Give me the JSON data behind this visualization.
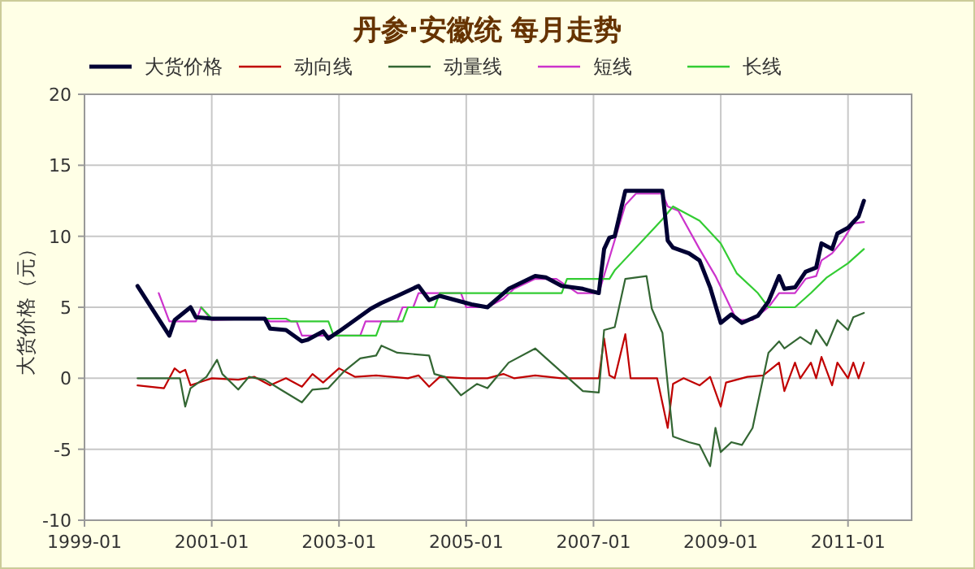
{
  "chart_data": {
    "type": "line",
    "title": "丹参·安徽统 每月走势",
    "ylabel": "大货价格（元）",
    "legend": "top",
    "grid": true,
    "xlim": [
      "1999-01",
      "2012-01"
    ],
    "xticks": [
      "1999-01",
      "2001-01",
      "2003-01",
      "2005-01",
      "2007-01",
      "2009-01",
      "2011-01"
    ],
    "ylim": [
      -10,
      20
    ],
    "yticks": [
      -10,
      -5,
      0,
      5,
      10,
      15,
      20
    ],
    "series": [
      {
        "name": "大货价格",
        "color": "#000033",
        "x": [
          "1999-11",
          "2000-05",
          "2000-06",
          "2000-09",
          "2000-10",
          "2001-01",
          "2001-11",
          "2001-12",
          "2002-03",
          "2002-06",
          "2002-07",
          "2002-10",
          "2002-11",
          "2003-01",
          "2003-07",
          "2003-09",
          "2003-12",
          "2004-04",
          "2004-06",
          "2004-08",
          "2005-02",
          "2005-05",
          "2005-09",
          "2006-02",
          "2006-04",
          "2006-07",
          "2006-11",
          "2007-02",
          "2007-03",
          "2007-04",
          "2007-05",
          "2007-07",
          "2008-02",
          "2008-03",
          "2008-04",
          "2008-07",
          "2008-09",
          "2008-11",
          "2009-01",
          "2009-03",
          "2009-05",
          "2009-08",
          "2009-10",
          "2009-12",
          "2010-01",
          "2010-03",
          "2010-05",
          "2010-07",
          "2010-08",
          "2010-10",
          "2010-11",
          "2011-01",
          "2011-03",
          "2011-04"
        ],
        "values": [
          6.5,
          3.0,
          4.1,
          5.0,
          4.3,
          4.2,
          4.2,
          3.5,
          3.4,
          2.6,
          2.7,
          3.3,
          2.8,
          3.3,
          4.9,
          5.3,
          5.8,
          6.5,
          5.5,
          5.8,
          5.2,
          5.0,
          6.3,
          7.2,
          7.1,
          6.5,
          6.3,
          6.0,
          9.1,
          9.9,
          10.0,
          13.2,
          13.2,
          9.7,
          9.2,
          8.8,
          8.3,
          6.4,
          3.9,
          4.5,
          3.9,
          4.4,
          5.4,
          7.2,
          6.3,
          6.4,
          7.5,
          7.8,
          9.5,
          9.1,
          10.2,
          10.6,
          11.4,
          12.5
        ]
      },
      {
        "name": "动向线",
        "color": "#c00000",
        "x": [
          "1999-11",
          "2000-04",
          "2000-06",
          "2000-07",
          "2000-08",
          "2000-09",
          "2001-01",
          "2001-06",
          "2001-09",
          "2001-12",
          "2002-03",
          "2002-06",
          "2002-08",
          "2002-10",
          "2003-01",
          "2003-04",
          "2003-08",
          "2004-02",
          "2004-04",
          "2004-06",
          "2004-08",
          "2005-01",
          "2005-05",
          "2005-08",
          "2005-10",
          "2006-02",
          "2006-07",
          "2007-02",
          "2007-03",
          "2007-04",
          "2007-05",
          "2007-07",
          "2007-08",
          "2008-01",
          "2008-03",
          "2008-04",
          "2008-06",
          "2008-09",
          "2008-11",
          "2009-01",
          "2009-02",
          "2009-06",
          "2009-09",
          "2009-12",
          "2010-01",
          "2010-03",
          "2010-04",
          "2010-06",
          "2010-07",
          "2010-08",
          "2010-10",
          "2010-11",
          "2011-01",
          "2011-02",
          "2011-03",
          "2011-04"
        ],
        "values": [
          -0.5,
          -0.7,
          0.7,
          0.4,
          0.6,
          -0.5,
          0.0,
          -0.1,
          0.1,
          -0.5,
          0.0,
          -0.6,
          0.3,
          -0.3,
          0.7,
          0.1,
          0.2,
          0.0,
          0.2,
          -0.6,
          0.1,
          0.0,
          0.0,
          0.3,
          0.0,
          0.2,
          0.0,
          0.0,
          2.8,
          0.2,
          0.0,
          3.1,
          0.0,
          0.0,
          -3.5,
          -0.4,
          0.0,
          -0.5,
          0.1,
          -2.0,
          -0.3,
          0.1,
          0.2,
          1.1,
          -0.9,
          1.1,
          0.0,
          1.1,
          0.0,
          1.5,
          -0.5,
          1.1,
          0.0,
          1.1,
          0.0,
          1.1
        ]
      },
      {
        "name": "动量线",
        "color": "#336633",
        "x": [
          "1999-11",
          "2000-07",
          "2000-08",
          "2000-09",
          "2000-12",
          "2001-02",
          "2001-03",
          "2001-06",
          "2001-08",
          "2001-11",
          "2002-02",
          "2002-06",
          "2002-08",
          "2002-11",
          "2003-02",
          "2003-05",
          "2003-08",
          "2003-09",
          "2003-12",
          "2004-06",
          "2004-07",
          "2004-09",
          "2004-12",
          "2005-03",
          "2005-05",
          "2005-09",
          "2006-02",
          "2006-05",
          "2006-11",
          "2007-02",
          "2007-03",
          "2007-05",
          "2007-07",
          "2007-11",
          "2007-12",
          "2008-02",
          "2008-04",
          "2008-07",
          "2008-09",
          "2008-11",
          "2008-12",
          "2009-01",
          "2009-03",
          "2009-05",
          "2009-07",
          "2009-10",
          "2009-12",
          "2010-01",
          "2010-04",
          "2010-06",
          "2010-07",
          "2010-09",
          "2010-11",
          "2011-01",
          "2011-02",
          "2011-04"
        ],
        "values": [
          0.0,
          0.0,
          -2.0,
          -0.7,
          0.1,
          1.3,
          0.3,
          -0.8,
          0.1,
          -0.1,
          -0.8,
          -1.7,
          -0.8,
          -0.7,
          0.5,
          1.4,
          1.6,
          2.3,
          1.8,
          1.6,
          0.3,
          0.1,
          -1.2,
          -0.4,
          -0.7,
          1.1,
          2.1,
          1.1,
          -0.9,
          -1.0,
          3.4,
          3.6,
          7.0,
          7.2,
          4.9,
          3.2,
          -4.1,
          -4.5,
          -4.7,
          -6.2,
          -3.5,
          -5.2,
          -4.5,
          -4.7,
          -3.5,
          1.8,
          2.6,
          2.1,
          2.9,
          2.4,
          3.4,
          2.3,
          4.1,
          3.4,
          4.3,
          4.6
        ]
      },
      {
        "name": "短线",
        "color": "#cc33cc",
        "x": [
          "2000-03",
          "2000-05",
          "2000-10",
          "2000-11",
          "2001-01",
          "2001-11",
          "2001-12",
          "2002-05",
          "2002-06",
          "2003-05",
          "2003-06",
          "2003-12",
          "2004-01",
          "2004-03",
          "2004-04",
          "2004-12",
          "2005-01",
          "2005-05",
          "2005-08",
          "2005-10",
          "2006-02",
          "2006-06",
          "2006-10",
          "2007-02",
          "2007-07",
          "2007-09",
          "2008-02",
          "2008-03",
          "2008-05",
          "2008-09",
          "2008-12",
          "2009-04",
          "2009-07",
          "2009-10",
          "2009-12",
          "2010-03",
          "2010-05",
          "2010-07",
          "2010-08",
          "2010-10",
          "2010-12",
          "2011-02",
          "2011-04"
        ],
        "values": [
          6.0,
          4.0,
          4.0,
          5.0,
          4.1,
          4.2,
          4.0,
          4.0,
          3.0,
          3.0,
          4.0,
          4.0,
          5.0,
          5.0,
          6.0,
          6.0,
          5.0,
          5.0,
          5.6,
          6.3,
          7.0,
          7.0,
          6.0,
          6.0,
          12.2,
          13.0,
          13.0,
          12.1,
          11.8,
          9.1,
          7.2,
          4.1,
          4.1,
          5.0,
          6.0,
          6.0,
          7.0,
          7.2,
          8.3,
          8.8,
          9.7,
          10.9,
          11.0
        ]
      },
      {
        "name": "长线",
        "color": "#33cc33",
        "x": [
          "2000-11",
          "2001-01",
          "2002-03",
          "2002-04",
          "2002-11",
          "2002-12",
          "2003-08",
          "2003-09",
          "2004-01",
          "2004-02",
          "2004-07",
          "2004-08",
          "2006-07",
          "2006-08",
          "2007-04",
          "2007-05",
          "2007-11",
          "2008-02",
          "2008-04",
          "2008-09",
          "2009-01",
          "2009-04",
          "2009-08",
          "2009-10",
          "2010-03",
          "2010-06",
          "2010-09",
          "2011-01",
          "2011-04"
        ],
        "values": [
          5.0,
          4.2,
          4.2,
          4.0,
          4.0,
          3.0,
          3.0,
          4.0,
          4.0,
          5.0,
          5.0,
          6.0,
          6.0,
          7.0,
          7.0,
          7.6,
          10.0,
          11.2,
          12.1,
          11.1,
          9.5,
          7.4,
          6.0,
          5.0,
          5.0,
          6.0,
          7.1,
          8.1,
          9.1
        ]
      }
    ]
  }
}
